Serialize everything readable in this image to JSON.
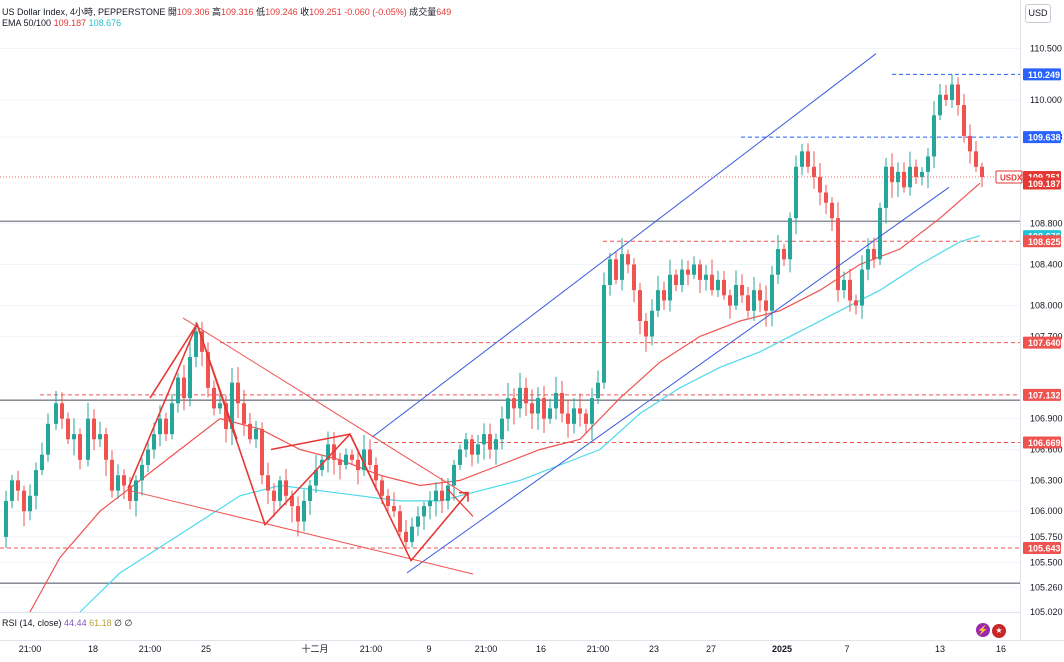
{
  "header": {
    "symbol_line": "US Dollar Index, 4小時, PEPPERSTONE",
    "open_label": "開",
    "open": "109.306",
    "high_label": "高",
    "high": "109.316",
    "low_label": "低",
    "low": "109.246",
    "close_label": "收",
    "close": "109.251",
    "change": "-0.060 (-0.05%)",
    "volume_label": "成交量",
    "volume": "649",
    "ema_label": "EMA 50/100",
    "ema50": "109.187",
    "ema100": "108.676"
  },
  "currency_button": "USD",
  "rsi": {
    "label": "RSI (14, close)",
    "v1": "44.44",
    "v2": "61.18",
    "v3": "∅",
    "v4": "∅"
  },
  "icons": [
    "lightning-icon",
    "us-flag-icon"
  ],
  "colors": {
    "up": "#26a69a",
    "down": "#ef5350",
    "ema50": "#ef5350",
    "ema100": "#4dd9ee",
    "channel": "#3b5bdb",
    "wedge": "#ef5350",
    "hline": "#787b86"
  },
  "chart_data": {
    "type": "candlestick",
    "title": "US Dollar Index, 4小時, PEPPERSTONE",
    "ylim": [
      105.02,
      110.68
    ],
    "y_ticks": [
      "110.500",
      "110.000",
      "109.638",
      "108.800",
      "108.400",
      "108.000",
      "107.700",
      "106.900",
      "106.600",
      "106.300",
      "106.000",
      "105.750",
      "105.500",
      "105.260",
      "105.020"
    ],
    "x_ticks": [
      "21:00",
      "18",
      "21:00",
      "25",
      "十二月",
      "21:00",
      "9",
      "21:00",
      "16",
      "21:00",
      "23",
      "27",
      "2025",
      "7",
      "13",
      "16"
    ],
    "price_labels": [
      {
        "value": "110.249",
        "kind": "dashed-blue"
      },
      {
        "value": "109.638",
        "kind": "dashed-blue"
      },
      {
        "value": "109.251",
        "kind": "current",
        "tag": "USDX"
      },
      {
        "value": "109.187",
        "kind": "ema50"
      },
      {
        "value": "108.676",
        "kind": "ema100"
      },
      {
        "value": "108.625",
        "kind": "dashed-red"
      },
      {
        "value": "107.640",
        "kind": "dashed-red"
      },
      {
        "value": "107.132",
        "kind": "dashed-red"
      },
      {
        "value": "106.669",
        "kind": "dashed-red"
      },
      {
        "value": "105.643",
        "kind": "dashed-red"
      }
    ],
    "horizontal_lines": [
      108.82,
      107.08,
      105.3
    ],
    "close_path": [
      [
        0,
        105.75
      ],
      [
        6,
        106.1
      ],
      [
        12,
        106.3
      ],
      [
        18,
        106.2
      ],
      [
        24,
        106.0
      ],
      [
        30,
        106.15
      ],
      [
        36,
        106.4
      ],
      [
        42,
        106.55
      ],
      [
        48,
        106.85
      ],
      [
        56,
        107.05
      ],
      [
        62,
        106.9
      ],
      [
        68,
        106.7
      ],
      [
        74,
        106.75
      ],
      [
        80,
        106.5
      ],
      [
        88,
        106.9
      ],
      [
        94,
        106.7
      ],
      [
        100,
        106.75
      ],
      [
        106,
        106.5
      ],
      [
        112,
        106.2
      ],
      [
        118,
        106.35
      ],
      [
        124,
        106.25
      ],
      [
        130,
        106.1
      ],
      [
        136,
        106.3
      ],
      [
        142,
        106.45
      ],
      [
        148,
        106.6
      ],
      [
        154,
        106.75
      ],
      [
        160,
        106.9
      ],
      [
        166,
        106.75
      ],
      [
        172,
        107.05
      ],
      [
        178,
        107.3
      ],
      [
        184,
        107.1
      ],
      [
        190,
        107.5
      ],
      [
        196,
        107.75
      ],
      [
        202,
        107.55
      ],
      [
        208,
        107.2
      ],
      [
        214,
        107.0
      ],
      [
        220,
        107.05
      ],
      [
        226,
        106.8
      ],
      [
        232,
        107.25
      ],
      [
        238,
        107.05
      ],
      [
        244,
        106.85
      ],
      [
        250,
        106.7
      ],
      [
        256,
        106.8
      ],
      [
        262,
        106.35
      ],
      [
        268,
        106.2
      ],
      [
        274,
        106.1
      ],
      [
        280,
        106.3
      ],
      [
        286,
        106.15
      ],
      [
        292,
        106.05
      ],
      [
        298,
        105.9
      ],
      [
        304,
        106.1
      ],
      [
        310,
        106.25
      ],
      [
        316,
        106.4
      ],
      [
        322,
        106.5
      ],
      [
        328,
        106.65
      ],
      [
        334,
        106.5
      ],
      [
        340,
        106.45
      ],
      [
        346,
        106.55
      ],
      [
        352,
        106.5
      ],
      [
        358,
        106.4
      ],
      [
        364,
        106.6
      ],
      [
        370,
        106.45
      ],
      [
        376,
        106.3
      ],
      [
        382,
        106.15
      ],
      [
        388,
        106.05
      ],
      [
        394,
        106.0
      ],
      [
        400,
        105.8
      ],
      [
        406,
        105.7
      ],
      [
        412,
        105.85
      ],
      [
        418,
        105.95
      ],
      [
        424,
        106.05
      ],
      [
        430,
        106.1
      ],
      [
        436,
        106.2
      ],
      [
        442,
        106.1
      ],
      [
        448,
        106.25
      ],
      [
        454,
        106.45
      ],
      [
        460,
        106.6
      ],
      [
        466,
        106.7
      ],
      [
        472,
        106.55
      ],
      [
        478,
        106.65
      ],
      [
        484,
        106.75
      ],
      [
        490,
        106.6
      ],
      [
        496,
        106.7
      ],
      [
        502,
        106.9
      ],
      [
        508,
        107.1
      ],
      [
        514,
        107.0
      ],
      [
        520,
        107.2
      ],
      [
        526,
        107.05
      ],
      [
        532,
        106.95
      ],
      [
        538,
        107.1
      ],
      [
        544,
        106.9
      ],
      [
        550,
        107.0
      ],
      [
        556,
        107.15
      ],
      [
        562,
        106.95
      ],
      [
        568,
        106.85
      ],
      [
        574,
        107.0
      ],
      [
        580,
        106.95
      ],
      [
        586,
        106.85
      ],
      [
        592,
        107.1
      ],
      [
        598,
        107.25
      ],
      [
        604,
        108.2
      ],
      [
        610,
        108.45
      ],
      [
        616,
        108.25
      ],
      [
        622,
        108.5
      ],
      [
        628,
        108.4
      ],
      [
        634,
        108.15
      ],
      [
        640,
        107.85
      ],
      [
        646,
        107.7
      ],
      [
        652,
        107.95
      ],
      [
        658,
        108.15
      ],
      [
        664,
        108.05
      ],
      [
        670,
        108.3
      ],
      [
        676,
        108.2
      ],
      [
        682,
        108.35
      ],
      [
        688,
        108.3
      ],
      [
        694,
        108.4
      ],
      [
        700,
        108.25
      ],
      [
        706,
        108.3
      ],
      [
        712,
        108.15
      ],
      [
        718,
        108.25
      ],
      [
        724,
        108.1
      ],
      [
        730,
        108.0
      ],
      [
        736,
        108.2
      ],
      [
        742,
        108.1
      ],
      [
        748,
        107.95
      ],
      [
        754,
        108.15
      ],
      [
        760,
        108.05
      ],
      [
        766,
        107.95
      ],
      [
        772,
        108.3
      ],
      [
        778,
        108.55
      ],
      [
        784,
        108.45
      ],
      [
        790,
        108.85
      ],
      [
        796,
        109.35
      ],
      [
        802,
        109.5
      ],
      [
        808,
        109.35
      ],
      [
        814,
        109.25
      ],
      [
        820,
        109.1
      ],
      [
        826,
        109.0
      ],
      [
        832,
        108.85
      ],
      [
        838,
        108.15
      ],
      [
        844,
        108.25
      ],
      [
        850,
        108.05
      ],
      [
        856,
        108.0
      ],
      [
        862,
        108.35
      ],
      [
        868,
        108.55
      ],
      [
        874,
        108.45
      ],
      [
        880,
        108.95
      ],
      [
        886,
        109.35
      ],
      [
        892,
        109.2
      ],
      [
        898,
        109.3
      ],
      [
        904,
        109.15
      ],
      [
        910,
        109.35
      ],
      [
        916,
        109.25
      ],
      [
        922,
        109.3
      ],
      [
        928,
        109.45
      ],
      [
        934,
        109.85
      ],
      [
        940,
        110.05
      ],
      [
        946,
        110.0
      ],
      [
        952,
        110.15
      ],
      [
        958,
        109.95
      ],
      [
        964,
        109.65
      ],
      [
        970,
        109.5
      ],
      [
        976,
        109.35
      ],
      [
        982,
        109.25
      ]
    ],
    "ema50_path": [
      [
        30,
        105.02
      ],
      [
        60,
        105.55
      ],
      [
        100,
        106.0
      ],
      [
        140,
        106.3
      ],
      [
        180,
        106.6
      ],
      [
        220,
        106.9
      ],
      [
        260,
        106.8
      ],
      [
        300,
        106.6
      ],
      [
        340,
        106.5
      ],
      [
        380,
        106.35
      ],
      [
        420,
        106.25
      ],
      [
        460,
        106.3
      ],
      [
        500,
        106.45
      ],
      [
        540,
        106.6
      ],
      [
        580,
        106.7
      ],
      [
        620,
        107.1
      ],
      [
        660,
        107.45
      ],
      [
        700,
        107.7
      ],
      [
        740,
        107.85
      ],
      [
        780,
        107.95
      ],
      [
        820,
        108.15
      ],
      [
        860,
        108.4
      ],
      [
        900,
        108.55
      ],
      [
        940,
        108.85
      ],
      [
        980,
        109.19
      ]
    ],
    "ema100_path": [
      [
        80,
        105.02
      ],
      [
        120,
        105.4
      ],
      [
        160,
        105.65
      ],
      [
        200,
        105.9
      ],
      [
        240,
        106.15
      ],
      [
        280,
        106.25
      ],
      [
        320,
        106.2
      ],
      [
        360,
        106.15
      ],
      [
        400,
        106.1
      ],
      [
        440,
        106.1
      ],
      [
        480,
        106.2
      ],
      [
        520,
        106.3
      ],
      [
        560,
        106.45
      ],
      [
        600,
        106.6
      ],
      [
        640,
        106.95
      ],
      [
        680,
        107.2
      ],
      [
        720,
        107.4
      ],
      [
        760,
        107.55
      ],
      [
        800,
        107.75
      ],
      [
        840,
        107.95
      ],
      [
        880,
        108.15
      ],
      [
        920,
        108.4
      ],
      [
        960,
        108.62
      ],
      [
        980,
        108.68
      ]
    ],
    "channel_upper": [
      [
        372,
        106.72
      ],
      [
        876,
        110.45
      ]
    ],
    "channel_lower": [
      [
        407,
        105.4
      ],
      [
        949,
        109.15
      ]
    ],
    "wedge_top": [
      [
        183,
        107.88
      ],
      [
        468,
        106.15
      ]
    ],
    "wedge_bottom": [
      [
        130,
        106.2
      ],
      [
        473,
        105.39
      ]
    ],
    "zigzag": [
      [
        128,
        106.22
      ],
      [
        197,
        107.82
      ],
      [
        265,
        105.87
      ],
      [
        350,
        106.75
      ],
      [
        411,
        105.52
      ],
      [
        468,
        106.18
      ]
    ],
    "dashed_levels": [
      {
        "value": 110.249,
        "color": "blue",
        "from": 892
      },
      {
        "value": 109.638,
        "color": "blue",
        "from": 741
      },
      {
        "value": 108.625,
        "color": "red",
        "from": 603
      },
      {
        "value": 107.64,
        "color": "red",
        "from": 220
      },
      {
        "value": 107.132,
        "color": "red",
        "from": 40
      },
      {
        "value": 106.669,
        "color": "red",
        "from": 374
      },
      {
        "value": 105.643,
        "color": "red",
        "from": 0
      }
    ]
  }
}
